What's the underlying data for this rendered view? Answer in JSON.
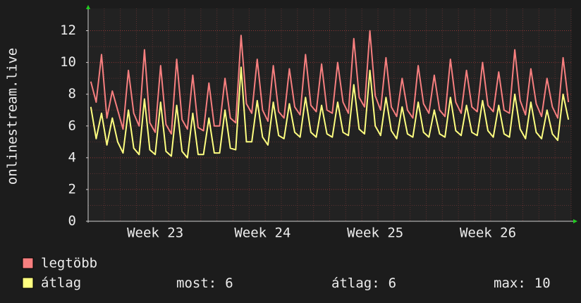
{
  "chart_data": {
    "type": "line",
    "y_label": "onlinestream.live",
    "categories": [
      null,
      null,
      null,
      null,
      null,
      null,
      null,
      null,
      null,
      null,
      null,
      null,
      "Week 23",
      null,
      null,
      null,
      null,
      null,
      null,
      null,
      null,
      null,
      null,
      null,
      null,
      null,
      null,
      null,
      null,
      null,
      null,
      null,
      "Week 24",
      null,
      null,
      null,
      null,
      null,
      null,
      null,
      null,
      null,
      null,
      null,
      null,
      null,
      null,
      null,
      null,
      null,
      null,
      null,
      null,
      "Week 25",
      null,
      null,
      null,
      null,
      null,
      null,
      null,
      null,
      null,
      null,
      null,
      null,
      null,
      null,
      null,
      null,
      null,
      null,
      null,
      null,
      "Week 26",
      null,
      null,
      null,
      null,
      null,
      null,
      null,
      null,
      null,
      null,
      null,
      null,
      null,
      null,
      null
    ],
    "series": [
      {
        "name": "legtöbb",
        "color": "#f77f7f",
        "values": [
          8.8,
          7.5,
          10.5,
          6.5,
          8.2,
          7.0,
          5.8,
          9.5,
          6.8,
          6.0,
          10.8,
          6.2,
          5.6,
          9.8,
          6.1,
          5.5,
          10.2,
          6.4,
          5.8,
          9.2,
          5.9,
          5.7,
          8.7,
          6.0,
          6.0,
          9.0,
          6.5,
          6.2,
          11.7,
          7.4,
          6.8,
          10.2,
          7.0,
          6.3,
          9.8,
          6.9,
          6.5,
          9.6,
          7.2,
          6.7,
          10.5,
          7.3,
          6.9,
          9.9,
          7.0,
          6.8,
          10.0,
          7.5,
          6.8,
          11.5,
          7.8,
          7.2,
          12.0,
          7.9,
          7.0,
          10.3,
          7.2,
          6.6,
          9.0,
          7.0,
          6.5,
          9.8,
          7.4,
          6.8,
          9.2,
          7.0,
          6.6,
          10.2,
          7.5,
          6.8,
          9.5,
          7.2,
          6.9,
          10.0,
          7.3,
          6.9,
          9.4,
          7.0,
          6.8,
          10.8,
          7.6,
          6.7,
          9.6,
          7.4,
          6.6,
          9.0,
          7.2,
          6.5,
          10.3,
          7.5
        ]
      },
      {
        "name": "átlag",
        "color": "#ffff80",
        "values": [
          7.2,
          5.2,
          6.8,
          4.8,
          6.5,
          5.0,
          4.3,
          7.0,
          4.6,
          4.2,
          7.7,
          4.5,
          4.2,
          7.5,
          4.4,
          4.1,
          7.3,
          4.4,
          4.0,
          6.8,
          4.2,
          4.2,
          6.5,
          4.3,
          4.3,
          7.0,
          4.6,
          4.5,
          9.7,
          5.0,
          5.0,
          7.6,
          5.3,
          4.8,
          7.5,
          5.4,
          5.2,
          7.4,
          5.6,
          5.3,
          7.8,
          5.6,
          5.3,
          7.3,
          5.5,
          5.3,
          7.5,
          5.6,
          5.4,
          8.6,
          5.8,
          5.5,
          9.5,
          6.0,
          5.4,
          7.8,
          5.7,
          5.2,
          7.2,
          5.5,
          5.3,
          7.5,
          5.6,
          5.3,
          7.0,
          5.5,
          5.3,
          7.8,
          5.7,
          5.4,
          7.3,
          5.6,
          5.4,
          7.6,
          5.7,
          5.3,
          7.3,
          5.5,
          5.3,
          8.0,
          5.8,
          5.2,
          7.5,
          5.6,
          5.2,
          7.0,
          5.5,
          5.1,
          8.0,
          6.4
        ]
      }
    ],
    "ylim": [
      0,
      13.4
    ],
    "yticks": [
      0,
      2,
      4,
      6,
      8,
      10,
      12
    ],
    "grid": true,
    "stats": [
      {
        "label": "most:",
        "value": 6
      },
      {
        "label": "átlag:",
        "value": 6
      },
      {
        "label": "max:",
        "value": 10
      }
    ]
  }
}
